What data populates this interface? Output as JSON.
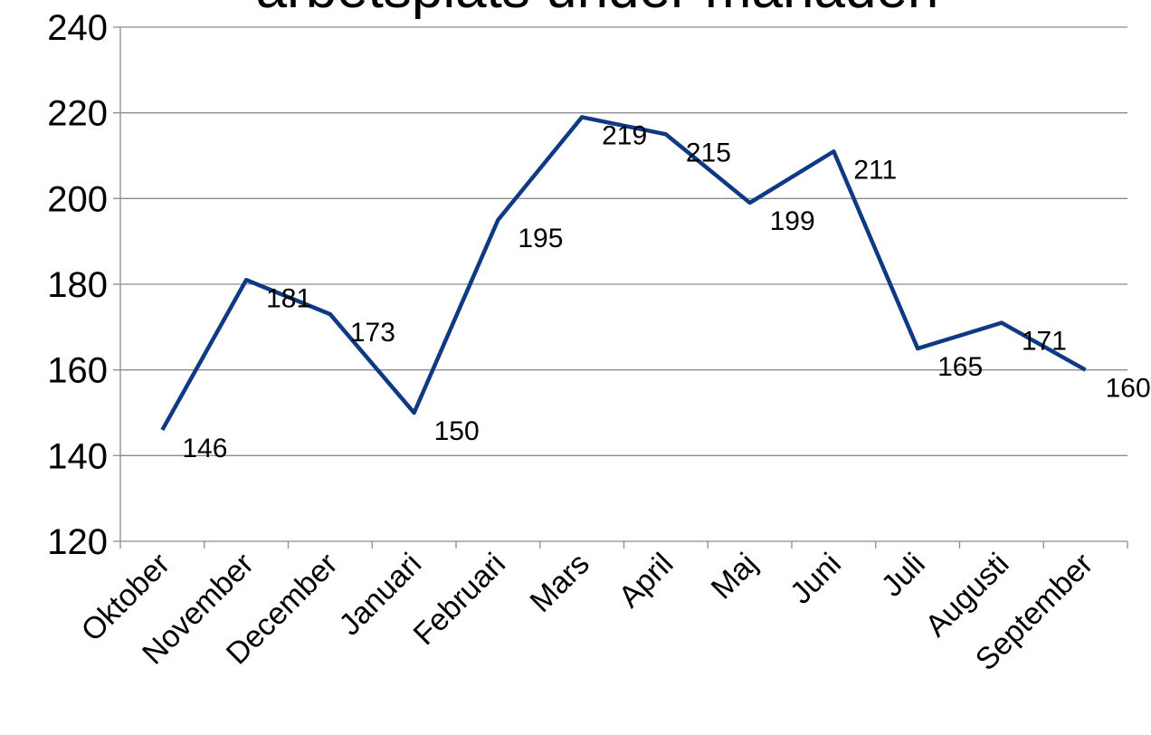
{
  "chart_data": {
    "type": "line",
    "title": "arbetsplats under månaden",
    "categories": [
      "Oktober",
      "November",
      "December",
      "Januari",
      "Februari",
      "Mars",
      "April",
      "Maj",
      "Juni",
      "Juli",
      "Augusti",
      "September"
    ],
    "series": [
      {
        "name": "arbetsplats under månaden",
        "color": "#0e3a84",
        "values": [
          146,
          181,
          173,
          150,
          195,
          219,
          215,
          199,
          211,
          165,
          171,
          160
        ]
      }
    ],
    "ylim": [
      120,
      240
    ],
    "yticks": [
      120,
      140,
      160,
      180,
      200,
      220,
      240
    ],
    "grid": true
  }
}
